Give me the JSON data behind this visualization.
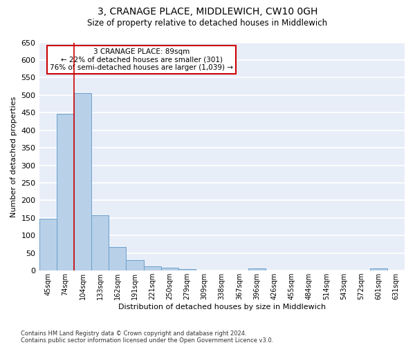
{
  "title1": "3, CRANAGE PLACE, MIDDLEWICH, CW10 0GH",
  "title2": "Size of property relative to detached houses in Middlewich",
  "xlabel": "Distribution of detached houses by size in Middlewich",
  "ylabel": "Number of detached properties",
  "categories": [
    "45sqm",
    "74sqm",
    "104sqm",
    "133sqm",
    "162sqm",
    "191sqm",
    "221sqm",
    "250sqm",
    "279sqm",
    "309sqm",
    "338sqm",
    "367sqm",
    "396sqm",
    "426sqm",
    "455sqm",
    "484sqm",
    "514sqm",
    "543sqm",
    "572sqm",
    "601sqm",
    "631sqm"
  ],
  "values": [
    147,
    447,
    506,
    158,
    68,
    30,
    13,
    9,
    4,
    0,
    0,
    0,
    6,
    0,
    0,
    0,
    0,
    0,
    0,
    6,
    0
  ],
  "bar_color": "#b8d0e8",
  "bar_edge_color": "#6aa0cc",
  "background_color": "#e8eef8",
  "grid_color": "#ffffff",
  "annotation_box_text": "3 CRANAGE PLACE: 89sqm\n← 22% of detached houses are smaller (301)\n76% of semi-detached houses are larger (1,039) →",
  "annotation_box_color": "#cc0000",
  "ylim": [
    0,
    650
  ],
  "yticks": [
    0,
    50,
    100,
    150,
    200,
    250,
    300,
    350,
    400,
    450,
    500,
    550,
    600,
    650
  ],
  "footnote1": "Contains HM Land Registry data © Crown copyright and database right 2024.",
  "footnote2": "Contains public sector information licensed under the Open Government Licence v3.0."
}
